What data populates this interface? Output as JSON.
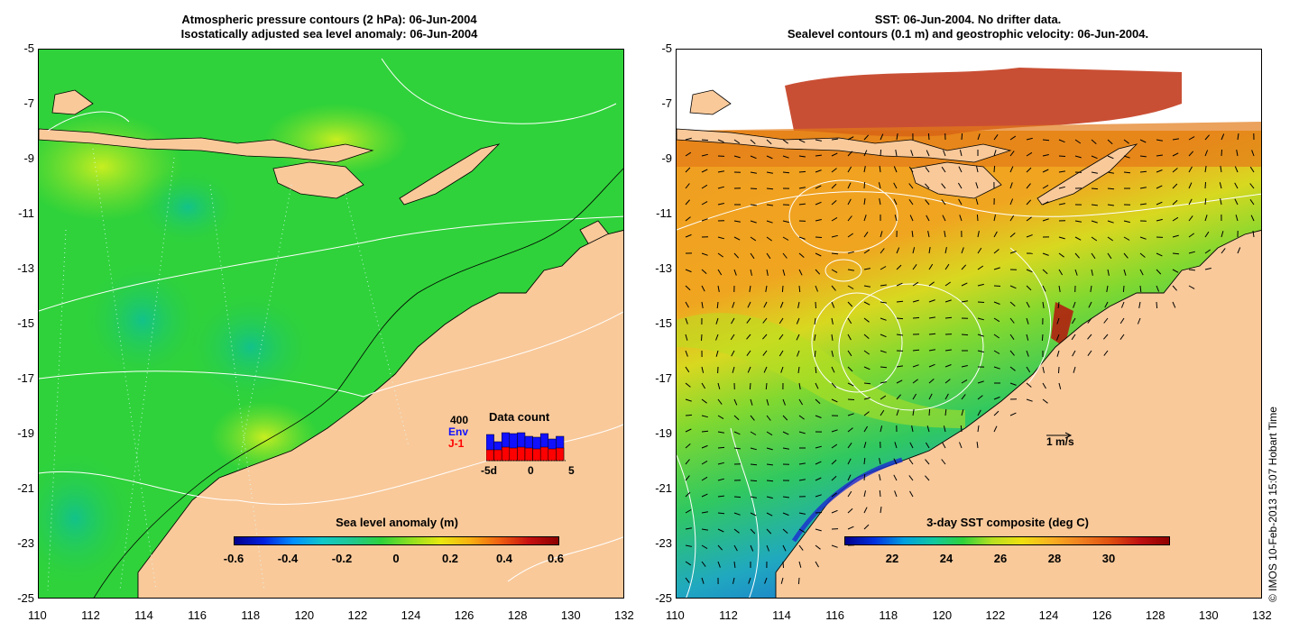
{
  "left_panel": {
    "title_line1": "Atmospheric pressure contours (2 hPa): 06-Jun-2004",
    "title_line2": "Isostatically adjusted sea level anomaly: 06-Jun-2004",
    "colorbar_title": "Sea level anomaly (m)",
    "colorbar_ticks": [
      "-0.6",
      "-0.4",
      "-0.2",
      "0",
      "0.2",
      "0.4",
      "0.6"
    ],
    "inset": {
      "title": "Data count",
      "max_label": "400",
      "env_label": "Env",
      "jason_label": "J-1",
      "x_ticks": [
        "-5d",
        "0",
        "5"
      ],
      "env_color": "#1010ff",
      "jason_color": "#ff0000"
    }
  },
  "right_panel": {
    "title_line1": "SST: 06-Jun-2004. No drifter data.",
    "title_line2": "Sealevel contours (0.1 m) and geostrophic velocity: 06-Jun-2004.",
    "colorbar_title": "3-day SST composite (deg C)",
    "colorbar_ticks": [
      "22",
      "24",
      "26",
      "28",
      "30"
    ],
    "velocity_scale_label": "1 m/s"
  },
  "axes": {
    "x_ticks": [
      "110",
      "112",
      "114",
      "116",
      "118",
      "120",
      "122",
      "124",
      "126",
      "128",
      "130",
      "132"
    ],
    "y_ticks": [
      "-5",
      "-7",
      "-9",
      "-11",
      "-13",
      "-15",
      "-17",
      "-19",
      "-21",
      "-23",
      "-25"
    ]
  },
  "credit": "© IMOS 10-Feb-2013 15:07 Hobart Time",
  "colors": {
    "land": "#f9c99a",
    "sea_level_main": "#2fd23a",
    "sst_main": "#f09a20"
  }
}
